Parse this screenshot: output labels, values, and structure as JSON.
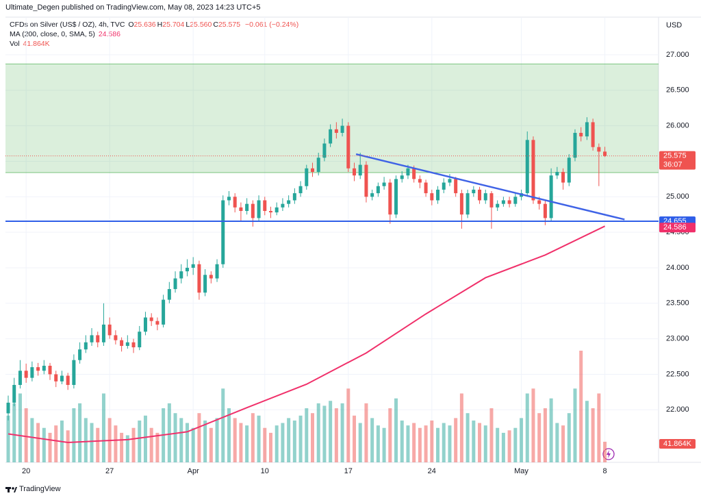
{
  "header": "Ultimate_Degen published on TradingView.com, May 08, 2023 14:23 UTC+5",
  "footer": "TradingView",
  "chart_data": {
    "type": "candlestick",
    "symbol": "CFDs on Silver (US$ / OZ), 4h, TVC",
    "ohlc_legend": [
      {
        "key": "O",
        "value": "25.636"
      },
      {
        "key": "H",
        "value": "25.704"
      },
      {
        "key": "L",
        "value": "25.560"
      },
      {
        "key": "C",
        "value": "25.575"
      }
    ],
    "change": "−0.061 (−0.24%)",
    "currency": "USD",
    "open": [
      21.95,
      22.1,
      22.35,
      22.55,
      22.45,
      22.6,
      22.55,
      22.62,
      22.5,
      22.4,
      22.48,
      22.35,
      22.7,
      22.85,
      22.95,
      23.05,
      22.95,
      23.2,
      23.05,
      22.98,
      22.9,
      22.95,
      22.88,
      23.1,
      23.3,
      23.25,
      23.2,
      23.55,
      23.7,
      23.85,
      23.95,
      24.0,
      24.05,
      23.65,
      23.9,
      23.85,
      24.05,
      24.95,
      25.0,
      24.85,
      24.8,
      24.9,
      24.7,
      24.95,
      24.8,
      24.78,
      24.85,
      24.9,
      24.95,
      25.05,
      25.15,
      25.4,
      25.35,
      25.55,
      25.75,
      25.95,
      25.9,
      26.0,
      25.4,
      25.3,
      25.45,
      25.0,
      25.05,
      25.15,
      25.2,
      24.75,
      25.25,
      25.3,
      25.4,
      25.25,
      25.2,
      25.05,
      24.95,
      25.1,
      25.2,
      25.25,
      25.05,
      24.75,
      25.05,
      25.1,
      24.95,
      25.05,
      24.85,
      24.9,
      24.95,
      24.9,
      25.0,
      25.05,
      25.8,
      24.95,
      24.9,
      24.7,
      25.3,
      25.35,
      25.2,
      25.55,
      25.9,
      25.85,
      26.05,
      25.7,
      25.636
    ],
    "high": [
      22.2,
      22.45,
      22.7,
      22.65,
      22.68,
      22.66,
      22.7,
      22.66,
      22.55,
      22.55,
      22.52,
      22.78,
      22.95,
      23.05,
      23.15,
      23.1,
      23.5,
      23.3,
      23.12,
      23.02,
      23.05,
      23.0,
      23.18,
      23.38,
      23.36,
      23.3,
      23.62,
      23.8,
      23.95,
      24.05,
      24.12,
      24.15,
      24.1,
      23.98,
      23.95,
      24.12,
      25.02,
      25.08,
      25.05,
      24.92,
      24.98,
      24.95,
      25.02,
      25.0,
      24.86,
      24.92,
      24.98,
      25.02,
      25.12,
      25.22,
      25.45,
      25.48,
      25.62,
      25.82,
      26.02,
      26.05,
      26.1,
      26.05,
      25.48,
      25.62,
      25.5,
      25.1,
      25.2,
      25.28,
      25.25,
      25.3,
      25.36,
      25.45,
      25.44,
      25.3,
      25.24,
      25.1,
      25.15,
      25.26,
      25.32,
      25.28,
      25.1,
      25.1,
      25.15,
      25.14,
      25.1,
      25.08,
      24.95,
      25.0,
      25.0,
      25.05,
      25.1,
      25.92,
      25.85,
      25.0,
      24.95,
      25.4,
      25.42,
      25.4,
      25.6,
      25.95,
      25.98,
      26.12,
      26.1,
      25.75,
      25.704
    ],
    "low": [
      21.85,
      22.05,
      22.3,
      22.38,
      22.4,
      22.48,
      22.5,
      22.42,
      22.32,
      22.36,
      22.28,
      22.3,
      22.65,
      22.8,
      22.9,
      22.88,
      22.9,
      23.0,
      22.92,
      22.82,
      22.86,
      22.8,
      22.84,
      23.05,
      23.18,
      23.12,
      23.16,
      23.5,
      23.65,
      23.78,
      23.88,
      23.9,
      23.55,
      23.6,
      23.78,
      23.8,
      24.0,
      24.88,
      24.78,
      24.65,
      24.75,
      24.58,
      24.66,
      24.74,
      24.7,
      24.74,
      24.8,
      24.85,
      24.9,
      25.0,
      25.1,
      25.28,
      25.3,
      25.5,
      25.7,
      25.82,
      25.85,
      25.35,
      25.22,
      25.25,
      24.92,
      24.95,
      25.0,
      25.1,
      24.62,
      24.7,
      25.2,
      25.25,
      25.2,
      25.12,
      25.0,
      24.88,
      24.9,
      25.05,
      25.15,
      25.0,
      24.55,
      24.7,
      25.0,
      24.9,
      24.9,
      24.55,
      24.8,
      24.86,
      24.85,
      24.86,
      24.95,
      25.0,
      24.9,
      24.82,
      24.6,
      24.66,
      25.25,
      25.1,
      25.15,
      25.5,
      25.78,
      25.8,
      25.65,
      25.15,
      25.56
    ],
    "close": [
      22.1,
      22.35,
      22.55,
      22.45,
      22.6,
      22.55,
      22.62,
      22.5,
      22.4,
      22.48,
      22.35,
      22.7,
      22.85,
      22.95,
      23.05,
      22.95,
      23.2,
      23.05,
      22.98,
      22.9,
      22.95,
      22.88,
      23.1,
      23.3,
      23.25,
      23.2,
      23.55,
      23.7,
      23.85,
      23.95,
      24.0,
      24.05,
      23.65,
      23.9,
      23.85,
      24.05,
      24.95,
      25.0,
      24.85,
      24.8,
      24.9,
      24.7,
      24.95,
      24.8,
      24.78,
      24.85,
      24.9,
      24.95,
      25.05,
      25.15,
      25.4,
      25.35,
      25.55,
      25.75,
      25.95,
      25.9,
      26.0,
      25.4,
      25.3,
      25.45,
      25.0,
      25.05,
      25.15,
      25.2,
      24.75,
      25.25,
      25.3,
      25.4,
      25.25,
      25.2,
      25.05,
      24.95,
      25.1,
      25.2,
      25.25,
      25.05,
      24.75,
      25.05,
      25.1,
      24.95,
      25.05,
      24.85,
      24.9,
      24.95,
      24.9,
      25.0,
      25.05,
      25.8,
      24.95,
      24.9,
      24.7,
      25.3,
      25.35,
      25.2,
      25.55,
      25.9,
      25.85,
      26.05,
      25.7,
      25.636,
      25.575
    ],
    "up_color": "#26a69a",
    "down_color": "#ef5350",
    "volume": {
      "name": "Vol",
      "last_label": "41.864K",
      "values": [
        95000,
        120000,
        140000,
        110000,
        90000,
        80000,
        70000,
        60000,
        75000,
        85000,
        65000,
        110000,
        120000,
        90000,
        80000,
        70000,
        140000,
        90000,
        75000,
        60000,
        55000,
        70000,
        85000,
        95000,
        70000,
        60000,
        110000,
        120000,
        100000,
        90000,
        80000,
        70000,
        100000,
        85000,
        70000,
        90000,
        150000,
        110000,
        90000,
        80000,
        75000,
        100000,
        95000,
        70000,
        60000,
        75000,
        80000,
        90000,
        85000,
        95000,
        110000,
        100000,
        120000,
        115000,
        125000,
        110000,
        120000,
        150000,
        95000,
        80000,
        120000,
        90000,
        75000,
        70000,
        110000,
        130000,
        85000,
        75000,
        80000,
        70000,
        75000,
        85000,
        70000,
        80000,
        75000,
        90000,
        140000,
        100000,
        85000,
        80000,
        75000,
        110000,
        70000,
        60000,
        65000,
        70000,
        90000,
        140000,
        150000,
        100000,
        110000,
        130000,
        80000,
        75000,
        100000,
        150000,
        227000,
        125000,
        110000,
        140000,
        41864
      ]
    },
    "ma": {
      "name": "MA (200, close, 0, SMA, 5)",
      "color": "#f0306a",
      "last_label": "24.586",
      "x": [
        0,
        10,
        20,
        30,
        40,
        50,
        60,
        70,
        80,
        90,
        100
      ],
      "values": [
        21.66,
        21.54,
        21.58,
        21.69,
        22.03,
        22.36,
        22.8,
        23.35,
        23.86,
        24.18,
        24.586
      ]
    },
    "last_price": {
      "value": 25.575,
      "label": "25.575",
      "countdown": "36:07"
    },
    "support": {
      "value": 24.655,
      "label": "24.655",
      "color": "#2f5ee8"
    },
    "trendline": {
      "x": [
        58.3,
        103.3
      ],
      "values": [
        25.6,
        24.68
      ],
      "color": "#3f63e6"
    },
    "zone": {
      "values": [
        25.34,
        26.87
      ],
      "color": "#4caf50"
    },
    "xlim": [
      -0.46,
      109
    ],
    "ylim": [
      21.26,
      27.53
    ],
    "xticks": [
      {
        "value": 3,
        "label": "20"
      },
      {
        "value": 17,
        "label": "27"
      },
      {
        "value": 31,
        "label": "Apr"
      },
      {
        "value": 43,
        "label": "10"
      },
      {
        "value": 57,
        "label": "17"
      },
      {
        "value": 71,
        "label": "24"
      },
      {
        "value": 86,
        "label": "May"
      },
      {
        "value": 100,
        "label": "8"
      }
    ],
    "yticks": [
      {
        "value": 27,
        "label": "27.000"
      },
      {
        "value": 26.5,
        "label": "26.500"
      },
      {
        "value": 26,
        "label": "26.000"
      },
      {
        "value": 25.5,
        "label": "25.500"
      },
      {
        "value": 25,
        "label": "25.000"
      },
      {
        "value": 24.5,
        "label": "24.500"
      },
      {
        "value": 24,
        "label": "24.000"
      },
      {
        "value": 23.5,
        "label": "23.500"
      },
      {
        "value": 23,
        "label": "23.000"
      },
      {
        "value": 22.5,
        "label": "22.500"
      },
      {
        "value": 22,
        "label": "22.000"
      }
    ],
    "grid": true
  }
}
